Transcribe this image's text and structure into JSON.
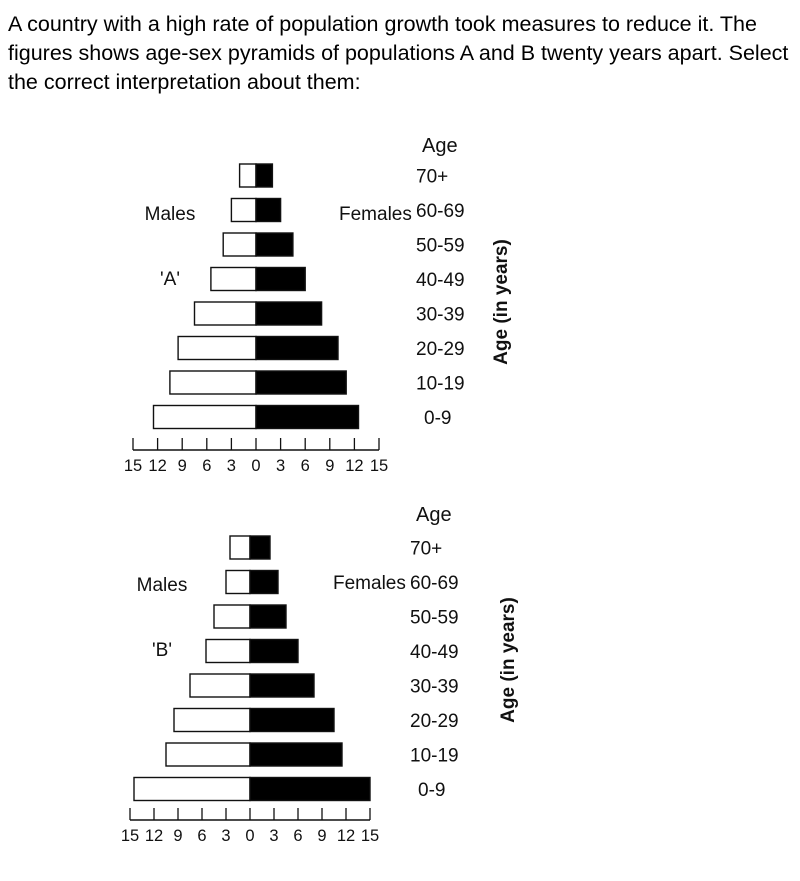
{
  "question": {
    "text": "A country with a high rate of population growth took measures to reduce it. The figures shows age-sex pyramids of populations A and B twenty years apart. Select the correct interpretation about them:"
  },
  "chart_data": [
    {
      "type": "bar",
      "subtype": "population-pyramid",
      "name": "'A'",
      "age_title": "Age",
      "ylabel": "Age (in years)",
      "male_label": "Males",
      "female_label": "Females",
      "categories": [
        "70+",
        "60-69",
        "50-59",
        "40-49",
        "30-39",
        "20-29",
        "10-19",
        "0-9"
      ],
      "series": [
        {
          "name": "Males",
          "color": "#ffffff",
          "values": [
            2,
            3,
            4,
            5.5,
            7.5,
            9.5,
            10.5,
            12.5
          ]
        },
        {
          "name": "Females",
          "color": "#000000",
          "values": [
            2,
            3,
            4.5,
            6,
            8,
            10,
            11,
            12.5
          ]
        }
      ],
      "xticks": [
        "15",
        "12",
        "9",
        "6",
        "3",
        "0",
        "3",
        "6",
        "9",
        "12",
        "15"
      ],
      "xlim": [
        -15,
        15
      ]
    },
    {
      "type": "bar",
      "subtype": "population-pyramid",
      "name": "'B'",
      "age_title": "Age",
      "ylabel": "Age (in years)",
      "male_label": "Males",
      "female_label": "Females",
      "categories": [
        "70+",
        "60-69",
        "50-59",
        "40-49",
        "30-39",
        "20-29",
        "10-19",
        "0-9"
      ],
      "series": [
        {
          "name": "Males",
          "color": "#ffffff",
          "values": [
            2.5,
            3,
            4.5,
            5.5,
            7.5,
            9.5,
            10.5,
            14.5
          ]
        },
        {
          "name": "Females",
          "color": "#000000",
          "values": [
            2.5,
            3.5,
            4.5,
            6,
            8,
            10.5,
            11.5,
            15
          ]
        }
      ],
      "xticks": [
        "15",
        "12",
        "9",
        "6",
        "3",
        "0",
        "3",
        "6",
        "9",
        "12",
        "15"
      ],
      "xlim": [
        -15,
        15
      ]
    }
  ]
}
